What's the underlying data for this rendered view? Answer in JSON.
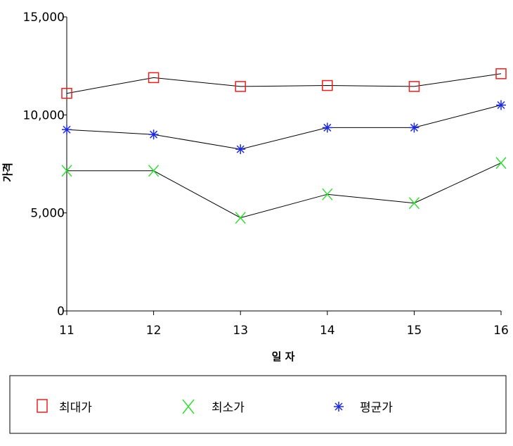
{
  "chart_data": {
    "type": "line",
    "xlabel": "일 자",
    "ylabel": "가격",
    "categories": [
      "11",
      "12",
      "13",
      "14",
      "15",
      "16"
    ],
    "ylim": [
      0,
      15000
    ],
    "yticks": [
      0,
      5000,
      10000,
      15000
    ],
    "ytick_labels": [
      "0",
      "5,000",
      "10,000",
      "15,000"
    ],
    "grid": false,
    "legend_placement": "bottom",
    "series": [
      {
        "name": "최대가",
        "marker": "square",
        "color": "#e8201f",
        "values": [
          11100,
          11900,
          11450,
          11500,
          11450,
          12100
        ]
      },
      {
        "name": "최소가",
        "marker": "x",
        "color": "#33dd33",
        "values": [
          7150,
          7150,
          4750,
          5950,
          5500,
          7550
        ]
      },
      {
        "name": "평균가",
        "marker": "asterisk",
        "color": "#1f2bd9",
        "values": [
          9250,
          9000,
          8250,
          9350,
          9350,
          10500
        ]
      }
    ]
  }
}
